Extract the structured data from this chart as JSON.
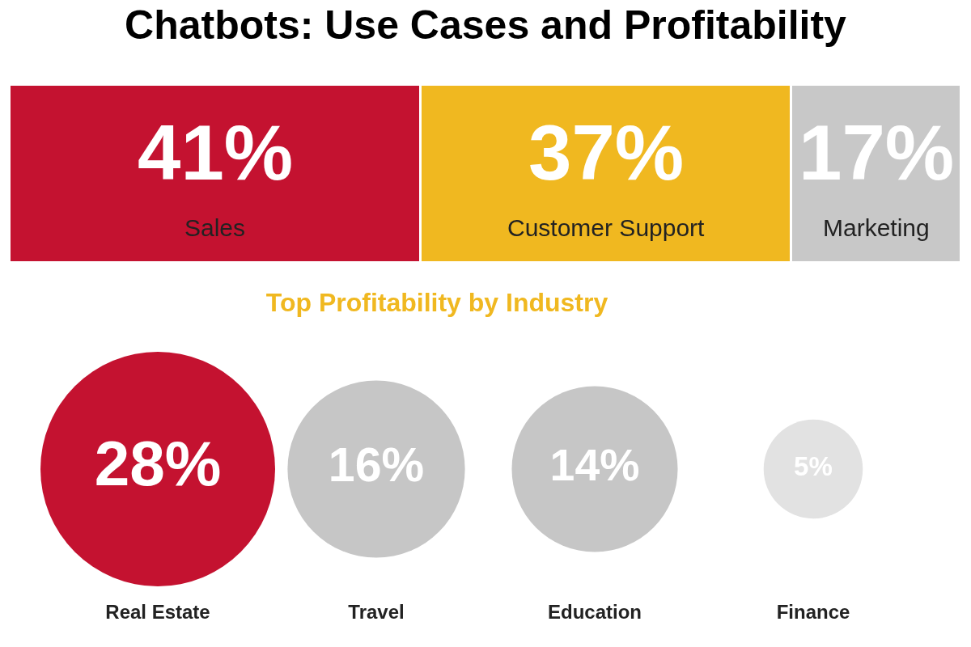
{
  "chart_data": [
    {
      "type": "bar",
      "title": "Chatbots: Use Cases and Profitability",
      "orientation": "horizontal",
      "stacked": true,
      "legend": false,
      "categories": [
        null
      ],
      "series": [
        {
          "name": "Sales",
          "color": "#c41230",
          "values": [
            41
          ],
          "value_labels": [
            "41%"
          ]
        },
        {
          "name": "Customer Support",
          "color": "#f0b820",
          "values": [
            37
          ],
          "value_labels": [
            "37%"
          ]
        },
        {
          "name": "Marketing",
          "color": "#c8c8c8",
          "values": [
            17
          ],
          "value_labels": [
            "17%"
          ]
        }
      ]
    },
    {
      "type": "other",
      "title": "Top Profitability by Industry",
      "categories": [
        "Real Estate",
        "Travel",
        "Education",
        "Finance"
      ],
      "values": [
        28,
        16,
        14,
        5
      ],
      "value_labels": [
        "28%",
        "16%",
        "14%",
        "5%"
      ],
      "colors": [
        "#c41230",
        "#c6c6c6",
        "#c6c6c6",
        "#e2e2e2"
      ]
    }
  ]
}
